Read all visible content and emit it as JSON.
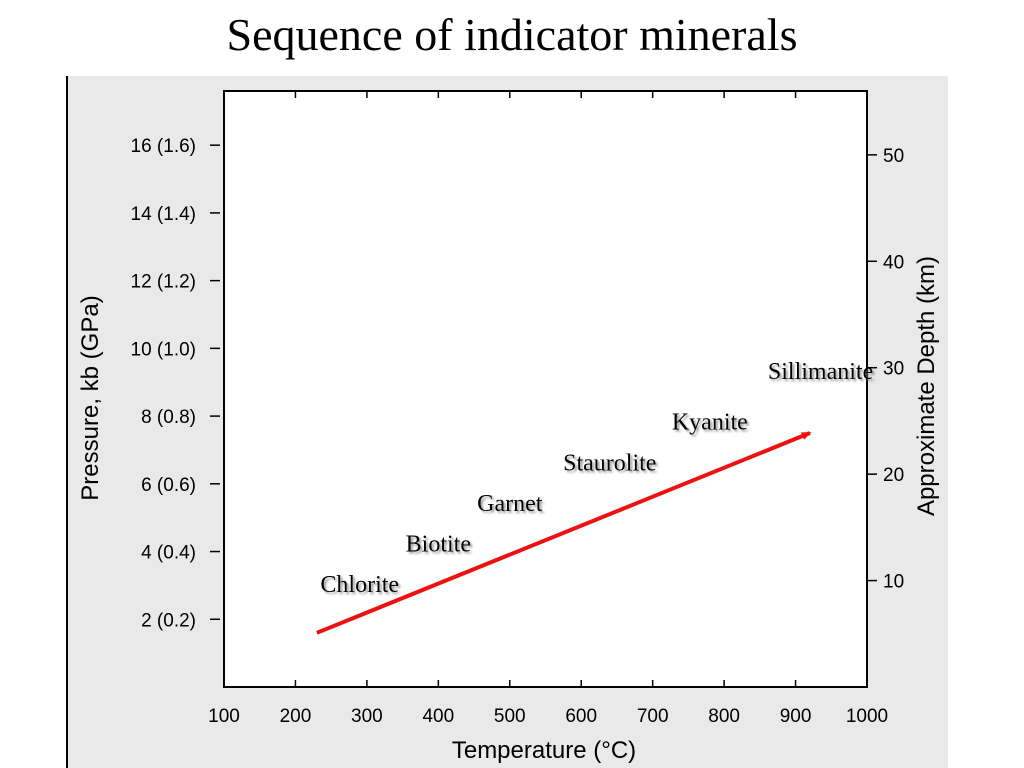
{
  "slide": {
    "title": "Sequence of indicator minerals"
  },
  "chart_data": {
    "type": "scatter",
    "title": "",
    "xlabel": "Temperature (°C)",
    "ylabel": "Pressure, kb (GPa)",
    "y2label": "Approximate Depth (km)",
    "xlim": [
      100,
      1000
    ],
    "ylim": [
      0,
      17.6
    ],
    "y2lim": [
      0,
      56
    ],
    "x_ticks": [
      {
        "value": 100,
        "label": "100"
      },
      {
        "value": 200,
        "label": "200"
      },
      {
        "value": 300,
        "label": "300"
      },
      {
        "value": 400,
        "label": "400"
      },
      {
        "value": 500,
        "label": "500"
      },
      {
        "value": 600,
        "label": "600"
      },
      {
        "value": 700,
        "label": "700"
      },
      {
        "value": 800,
        "label": "800"
      },
      {
        "value": 900,
        "label": "900"
      },
      {
        "value": 1000,
        "label": "1000"
      }
    ],
    "y_ticks": [
      {
        "value": 2,
        "label": "2 (0.2)"
      },
      {
        "value": 4,
        "label": "4 (0.4)"
      },
      {
        "value": 6,
        "label": "6 (0.6)"
      },
      {
        "value": 8,
        "label": "8 (0.8)"
      },
      {
        "value": 10,
        "label": "10 (1.0)"
      },
      {
        "value": 12,
        "label": "12 (1.2)"
      },
      {
        "value": 14,
        "label": "14 (1.4)"
      },
      {
        "value": 16,
        "label": "16 (1.6)"
      }
    ],
    "y2_ticks": [
      {
        "value": 10,
        "label": "10"
      },
      {
        "value": 20,
        "label": "20"
      },
      {
        "value": 30,
        "label": "30"
      },
      {
        "value": 40,
        "label": "40"
      },
      {
        "value": 50,
        "label": "50"
      }
    ],
    "arrow": {
      "from": [
        230,
        1.6
      ],
      "to": [
        920,
        7.5
      ],
      "color": "#ee1111"
    },
    "minerals": [
      {
        "name": "Chlorite",
        "x": 290,
        "y": 2.8
      },
      {
        "name": "Biotite",
        "x": 400,
        "y": 4.0
      },
      {
        "name": "Garnet",
        "x": 500,
        "y": 5.2
      },
      {
        "name": "Staurolite",
        "x": 640,
        "y": 6.4
      },
      {
        "name": "Kyanite",
        "x": 780,
        "y": 7.6
      },
      {
        "name": "Sillimanite",
        "x": 935,
        "y": 9.1
      }
    ],
    "grid": false
  }
}
